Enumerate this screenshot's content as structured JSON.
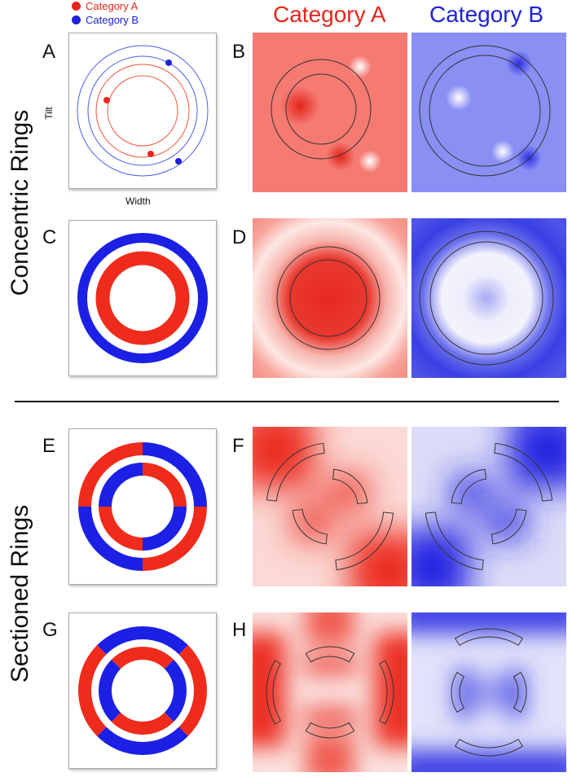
{
  "legend": [
    {
      "label": "Category A",
      "color": "#e8251c"
    },
    {
      "label": "Category B",
      "color": "#1e22d8"
    }
  ],
  "column_headers": [
    "Category A",
    "Category B"
  ],
  "row_labels": [
    "Concentric Rings",
    "Sectioned Rings"
  ],
  "panel_labels": [
    "A",
    "B",
    "C",
    "D",
    "E",
    "F",
    "G",
    "H"
  ],
  "axes": {
    "x": "Width",
    "y": "Tilt"
  },
  "colors": {
    "red": "#ef2b1c",
    "blue": "#1c1fe4",
    "outline": "#333333"
  }
}
